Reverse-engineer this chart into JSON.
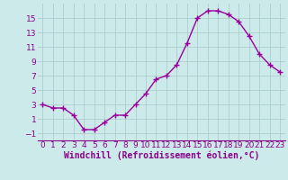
{
  "x": [
    0,
    1,
    2,
    3,
    4,
    5,
    6,
    7,
    8,
    9,
    10,
    11,
    12,
    13,
    14,
    15,
    16,
    17,
    18,
    19,
    20,
    21,
    22,
    23
  ],
  "y": [
    3,
    2.5,
    2.5,
    1.5,
    -0.5,
    -0.5,
    0.5,
    1.5,
    1.5,
    3.0,
    4.5,
    6.5,
    7.0,
    8.5,
    11.5,
    15.0,
    16.0,
    16.0,
    15.5,
    14.5,
    12.5,
    10.0,
    8.5,
    7.5
  ],
  "line_color": "#990099",
  "marker": "+",
  "marker_size": 4,
  "marker_lw": 1.0,
  "line_width": 1.0,
  "bg_color": "#cdeaea",
  "grid_color": "#aecece",
  "xlabel": "Windchill (Refroidissement éolien,°C)",
  "xlabel_fontsize": 7,
  "tick_color": "#880088",
  "tick_fontsize": 6.5,
  "ylim": [
    -2,
    17
  ],
  "xlim": [
    -0.5,
    23.5
  ],
  "yticks": [
    -1,
    1,
    3,
    5,
    7,
    9,
    11,
    13,
    15
  ],
  "xticks": [
    0,
    1,
    2,
    3,
    4,
    5,
    6,
    7,
    8,
    9,
    10,
    11,
    12,
    13,
    14,
    15,
    16,
    17,
    18,
    19,
    20,
    21,
    22,
    23
  ],
  "spine_color": "#880088"
}
